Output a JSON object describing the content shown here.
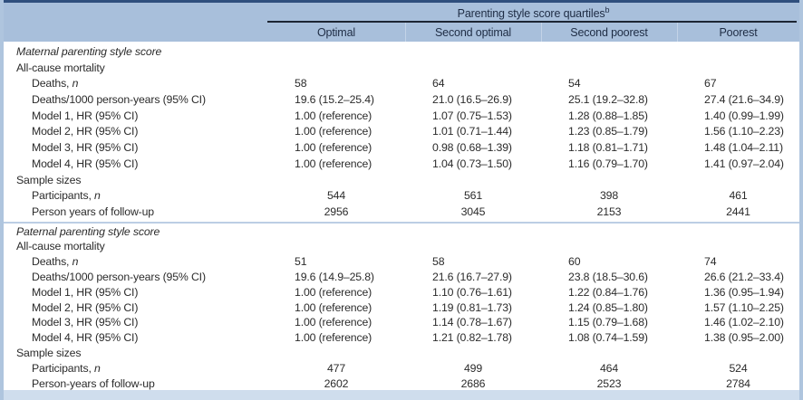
{
  "table": {
    "spanning_header": "Parenting style score quartiles",
    "spanning_header_sup": "b",
    "columns": [
      "Optimal",
      "Second optimal",
      "Second poorest",
      "Poorest"
    ]
  },
  "colors": {
    "header_bg": "#a8bfdb",
    "top_border": "#2f4f7d",
    "header_rule": "#1c2533",
    "side_border": "#afc5de",
    "bottom_bar": "#cfdded",
    "section_separator": "#bccee4",
    "text": "#2b2b2b"
  },
  "sections": [
    {
      "title": "Maternal parenting style score",
      "group_header": "All-cause mortality",
      "rows": [
        {
          "label": "Deaths, ",
          "italic": "n",
          "cells": [
            "58",
            "64",
            "54",
            "67"
          ]
        },
        {
          "label": "Deaths/1000 person-years (95% CI)",
          "italic": "",
          "cells": [
            "19.6 (15.2–25.4)",
            "21.0 (16.5–26.9)",
            "25.1 (19.2–32.8)",
            "27.4 (21.6–34.9)"
          ]
        },
        {
          "label": "Model 1, HR (95% CI)",
          "italic": "",
          "cells": [
            "1.00 (reference)",
            "1.07 (0.75–1.53)",
            "1.28 (0.88–1.85)",
            "1.40 (0.99–1.99)"
          ]
        },
        {
          "label": "Model 2, HR (95% CI)",
          "italic": "",
          "cells": [
            "1.00 (reference)",
            "1.01 (0.71–1.44)",
            "1.23 (0.85–1.79)",
            "1.56 (1.10–2.23)"
          ]
        },
        {
          "label": "Model 3, HR (95% CI)",
          "italic": "",
          "cells": [
            "1.00 (reference)",
            "0.98 (0.68–1.39)",
            "1.18 (0.81–1.71)",
            "1.48 (1.04–2.11)"
          ]
        },
        {
          "label": "Model 4, HR (95% CI)",
          "italic": "",
          "cells": [
            "1.00 (reference)",
            "1.04 (0.73–1.50)",
            "1.16 (0.79–1.70)",
            "1.41 (0.97–2.04)"
          ]
        }
      ],
      "sample_header": "Sample sizes",
      "sample_rows": [
        {
          "label": "Participants, ",
          "italic": "n",
          "cells": [
            "544",
            "561",
            "398",
            "461"
          ]
        },
        {
          "label": "Person years of follow-up",
          "italic": "",
          "cells": [
            "2956",
            "3045",
            "2153",
            "2441"
          ]
        }
      ]
    },
    {
      "title": "Paternal parenting style score",
      "group_header": "All-cause mortality",
      "rows": [
        {
          "label": "Deaths, ",
          "italic": "n",
          "cells": [
            "51",
            "58",
            "60",
            "74"
          ]
        },
        {
          "label": "Deaths/1000 person-years (95% CI)",
          "italic": "",
          "cells": [
            "19.6 (14.9–25.8)",
            "21.6 (16.7–27.9)",
            "23.8 (18.5–30.6)",
            "26.6 (21.2–33.4)"
          ]
        },
        {
          "label": "Model 1, HR (95% CI)",
          "italic": "",
          "cells": [
            "1.00 (reference)",
            "1.10 (0.76–1.61)",
            "1.22 (0.84–1.76)",
            "1.36 (0.95–1.94)"
          ]
        },
        {
          "label": "Model 2, HR (95% CI)",
          "italic": "",
          "cells": [
            "1.00 (reference)",
            "1.19 (0.81–1.73)",
            "1.24 (0.85–1.80)",
            "1.57 (1.10–2.25)"
          ]
        },
        {
          "label": "Model 3, HR (95% CI)",
          "italic": "",
          "cells": [
            "1.00 (reference)",
            "1.14 (0.78–1.67)",
            "1.15 (0.79–1.68)",
            "1.46 (1.02–2.10)"
          ]
        },
        {
          "label": "Model 4, HR (95% CI)",
          "italic": "",
          "cells": [
            "1.00 (reference)",
            "1.21 (0.82–1.78)",
            "1.08 (0.74–1.59)",
            "1.38 (0.95–2.00)"
          ]
        }
      ],
      "sample_header": "Sample sizes",
      "sample_rows": [
        {
          "label": "Participants, ",
          "italic": "n",
          "cells": [
            "477",
            "499",
            "464",
            "524"
          ]
        },
        {
          "label": "Person-years of follow-up",
          "italic": "",
          "cells": [
            "2602",
            "2686",
            "2523",
            "2784"
          ]
        }
      ]
    }
  ]
}
